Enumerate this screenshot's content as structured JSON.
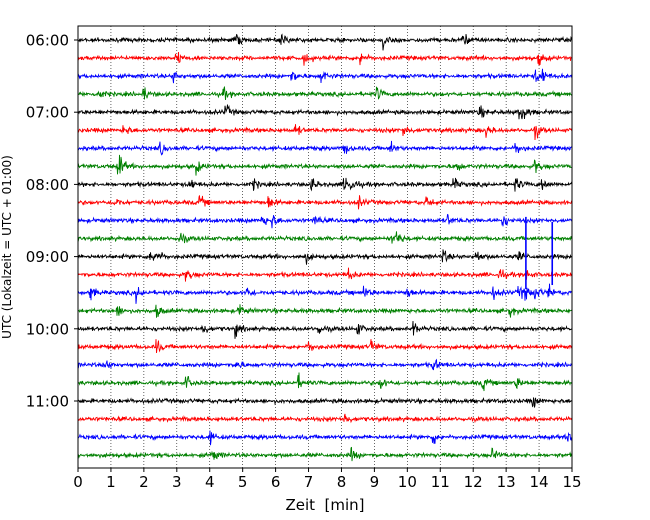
{
  "chart_data": {
    "type": "line",
    "title": "",
    "xlabel": "Zeit  [min]",
    "ylabel": "UTC (Lokalzeit = UTC + 01:00)",
    "xlim": [
      0,
      15
    ],
    "x_ticks": [
      "0",
      "1",
      "2",
      "3",
      "4",
      "5",
      "6",
      "7",
      "8",
      "9",
      "10",
      "11",
      "12",
      "13",
      "14",
      "15"
    ],
    "y_ticks": [
      "06:00",
      "07:00",
      "08:00",
      "09:00",
      "10:00",
      "11:00"
    ],
    "trace_interval_min": 15,
    "first_trace_time": "06:00",
    "trace_count": 24,
    "color_cycle": [
      "#000000",
      "#ff0000",
      "#0000ff",
      "#008000"
    ],
    "grid": {
      "vertical_dotted": true
    },
    "events_minutes": [
      [
        4.8,
        6.2,
        9.3,
        11.7
      ],
      [
        3.0,
        6.9,
        8.6,
        14.0
      ],
      [
        2.9,
        6.5,
        7.4,
        13.9,
        14.1
      ],
      [
        0.6,
        2.0,
        4.4,
        9.1
      ],
      [
        4.5,
        12.2,
        13.4,
        13.5
      ],
      [
        1.4,
        6.6,
        9.9,
        12.4,
        13.9
      ],
      [
        2.5,
        8.1,
        9.5,
        13.3
      ],
      [
        1.2,
        1.3,
        3.6,
        11.5,
        13.9
      ],
      [
        3.4,
        5.3,
        7.1,
        8.1,
        8.3,
        11.4,
        13.3,
        14.1
      ],
      [
        1.1,
        3.7,
        5.8,
        8.5,
        10.6
      ],
      [
        5.6,
        5.9,
        7.2,
        11.2,
        12.9
      ],
      [
        3.1,
        9.5,
        9.7
      ],
      [
        2.2,
        2.4,
        6.9,
        11.1,
        12.1,
        13.4
      ],
      [
        3.3,
        8.2,
        12.8,
        13.6
      ],
      [
        0.4,
        1.8,
        5.1,
        8.7,
        10.0,
        12.6,
        13.4,
        13.6,
        13.9,
        14.3
      ],
      [
        1.2,
        2.4,
        4.9,
        13.1
      ],
      [
        3.8,
        4.8,
        7.3,
        8.5,
        10.2
      ],
      [
        2.4,
        7.0,
        8.9
      ],
      [
        0.8,
        4.8,
        10.8
      ],
      [
        3.3,
        6.7,
        9.2,
        12.3,
        13.3
      ],
      [
        13.8
      ],
      [
        8.1
      ],
      [
        4.0,
        10.8,
        14.9
      ],
      [
        4.1,
        8.3,
        12.6
      ]
    ],
    "spikes": [
      {
        "trace": 12,
        "minute": 13.6,
        "amplitude_traces": 4.0,
        "color": "#0000ff"
      },
      {
        "trace": 12,
        "minute": 14.4,
        "amplitude_traces": 3.5,
        "color": "#0000ff"
      }
    ]
  }
}
